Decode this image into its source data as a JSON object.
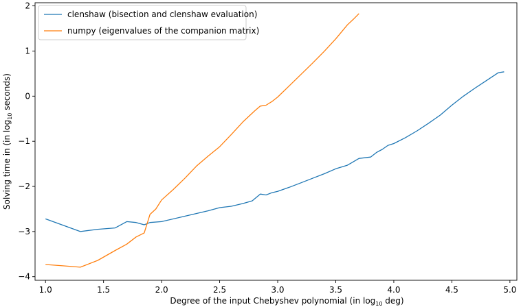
{
  "chart_data": {
    "type": "line",
    "xlabel": "Degree of the input Chebyshev polynomial (in log",
    "xlabel_sub": "10",
    "xlabel_tail": " deg)",
    "ylabel": "Solving time in (in log",
    "ylabel_sub": "10",
    "ylabel_tail": " seconds)",
    "xlim": [
      0.91,
      5.06
    ],
    "ylim": [
      -4.08,
      2.07
    ],
    "xticks": [
      1.0,
      1.5,
      2.0,
      2.5,
      3.0,
      3.5,
      4.0,
      4.5,
      5.0
    ],
    "xtick_labels": [
      "1.0",
      "1.5",
      "2.0",
      "2.5",
      "3.0",
      "3.5",
      "4.0",
      "4.5",
      "5.0"
    ],
    "yticks": [
      -4,
      -3,
      -2,
      -1,
      0,
      1,
      2
    ],
    "ytick_labels": [
      "−4",
      "−3",
      "−2",
      "−1",
      "0",
      "1",
      "2"
    ],
    "grid": false,
    "legend_position": "top-left",
    "series": [
      {
        "name": "clenshaw (bisection and clenshaw evaluation)",
        "color": "#1f77b4",
        "x": [
          1.0,
          1.3,
          1.45,
          1.6,
          1.7,
          1.78,
          1.85,
          1.9,
          2.0,
          2.2,
          2.4,
          2.5,
          2.6,
          2.7,
          2.78,
          2.85,
          2.9,
          2.95,
          3.0,
          3.1,
          3.2,
          3.3,
          3.4,
          3.5,
          3.6,
          3.7,
          3.8,
          3.85,
          3.9,
          3.95,
          4.0,
          4.1,
          4.2,
          4.3,
          4.4,
          4.5,
          4.6,
          4.7,
          4.8,
          4.9,
          4.95
        ],
        "y": [
          -2.72,
          -3.0,
          -2.95,
          -2.92,
          -2.78,
          -2.8,
          -2.85,
          -2.8,
          -2.78,
          -2.66,
          -2.54,
          -2.47,
          -2.44,
          -2.38,
          -2.32,
          -2.17,
          -2.19,
          -2.14,
          -2.11,
          -2.02,
          -1.92,
          -1.82,
          -1.72,
          -1.61,
          -1.53,
          -1.38,
          -1.35,
          -1.25,
          -1.18,
          -1.09,
          -1.05,
          -0.92,
          -0.77,
          -0.6,
          -0.42,
          -0.2,
          0.0,
          0.18,
          0.35,
          0.52,
          0.54
        ]
      },
      {
        "name": "numpy (eigenvalues of the companion matrix)",
        "color": "#ff7f0e",
        "x": [
          1.0,
          1.15,
          1.3,
          1.45,
          1.6,
          1.7,
          1.78,
          1.85,
          1.9,
          1.95,
          2.0,
          2.1,
          2.2,
          2.3,
          2.4,
          2.5,
          2.6,
          2.7,
          2.8,
          2.85,
          2.9,
          2.95,
          3.0,
          3.1,
          3.2,
          3.3,
          3.4,
          3.5,
          3.6,
          3.65,
          3.7
        ],
        "y": [
          -3.73,
          -3.76,
          -3.79,
          -3.64,
          -3.42,
          -3.28,
          -3.12,
          -3.03,
          -2.62,
          -2.5,
          -2.3,
          -2.07,
          -1.82,
          -1.55,
          -1.33,
          -1.12,
          -0.85,
          -0.57,
          -0.33,
          -0.22,
          -0.2,
          -0.12,
          -0.02,
          0.23,
          0.48,
          0.73,
          0.99,
          1.27,
          1.58,
          1.7,
          1.83
        ]
      }
    ]
  }
}
